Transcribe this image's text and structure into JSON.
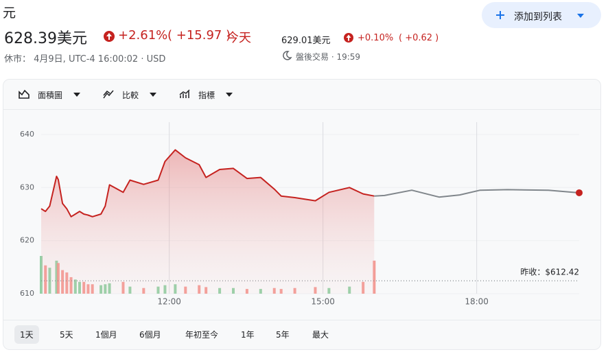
{
  "header": {
    "name": "元",
    "price": "628.39美元",
    "change_pct": "+2.61%",
    "change_abs": "( +15.97 )",
    "period": "今天",
    "status": "休市： 4月9日, UTC-4 16:00:02 · USD",
    "after_price": "629.01美元",
    "after_pct": "+0.10%",
    "after_abs": "( +0.62 )",
    "after_status": "盤後交易 · 19:59"
  },
  "add_button": "添加到列表",
  "toolbar": [
    "面積圖",
    "比較",
    "指標"
  ],
  "ranges": [
    "1天",
    "5天",
    "1個月",
    "6個月",
    "年初至今",
    "1年",
    "5年",
    "最大"
  ],
  "chart_data": {
    "type": "line",
    "x": [
      570,
      575,
      580,
      588,
      590,
      595,
      600,
      605,
      610,
      615,
      620,
      625,
      630,
      640,
      645,
      650,
      666,
      674,
      690,
      707,
      715,
      727,
      739,
      755,
      763,
      779,
      795,
      811,
      827,
      843,
      851,
      867,
      891,
      907,
      931,
      947,
      960,
      972,
      1004,
      1036,
      1060,
      1084,
      1116,
      1164,
      1200
    ],
    "series": [
      {
        "color": "#c5221f",
        "values": [
          626,
          625.5,
          626.5,
          632.1,
          631.5,
          627,
          626,
          624.5,
          625,
          625.5,
          625,
          624.8,
          624.5,
          625,
          626.5,
          630.5,
          629.1,
          631.4,
          630.6,
          631.4,
          634.9,
          637.1,
          635.6,
          634.3,
          631.9,
          633.4,
          633.6,
          631.7,
          631.9,
          629.7,
          628.4,
          628.1,
          627.5,
          629.1,
          630,
          628.8,
          628.4,
          null,
          null,
          null,
          null,
          null,
          null,
          null,
          null
        ]
      },
      {
        "color": "#80868b",
        "values": [
          null,
          null,
          null,
          null,
          null,
          null,
          null,
          null,
          null,
          null,
          null,
          null,
          null,
          null,
          null,
          null,
          null,
          null,
          null,
          null,
          null,
          null,
          null,
          null,
          null,
          null,
          null,
          null,
          null,
          null,
          null,
          null,
          null,
          null,
          null,
          null,
          628.4,
          628.5,
          629.5,
          628.2,
          628.6,
          629.5,
          629.6,
          629.5,
          629.01
        ]
      }
    ],
    "volume": [
      80,
      60,
      55,
      70,
      65,
      50,
      45,
      35,
      30,
      25,
      25,
      20,
      20,
      18,
      20,
      22,
      25,
      15,
      12,
      15,
      18,
      20,
      15,
      18,
      14,
      12,
      12,
      10,
      10,
      12,
      10,
      12,
      14,
      12,
      15,
      25,
      70,
      null,
      null,
      null,
      null,
      null,
      null,
      null,
      null
    ],
    "xlim": [
      570,
      1200
    ],
    "xticks": [
      {
        "value": 720,
        "label": "12:00"
      },
      {
        "value": 900,
        "label": "15:00"
      },
      {
        "value": 1080,
        "label": "18:00"
      }
    ],
    "ylim": [
      610,
      644
    ],
    "yticks": [
      640,
      630,
      620,
      610
    ],
    "previous_close": {
      "label": "昨收：",
      "value": 612.42,
      "value_label": "$612.42"
    },
    "up_color": "#81c995",
    "down_color": "#f28b82"
  }
}
